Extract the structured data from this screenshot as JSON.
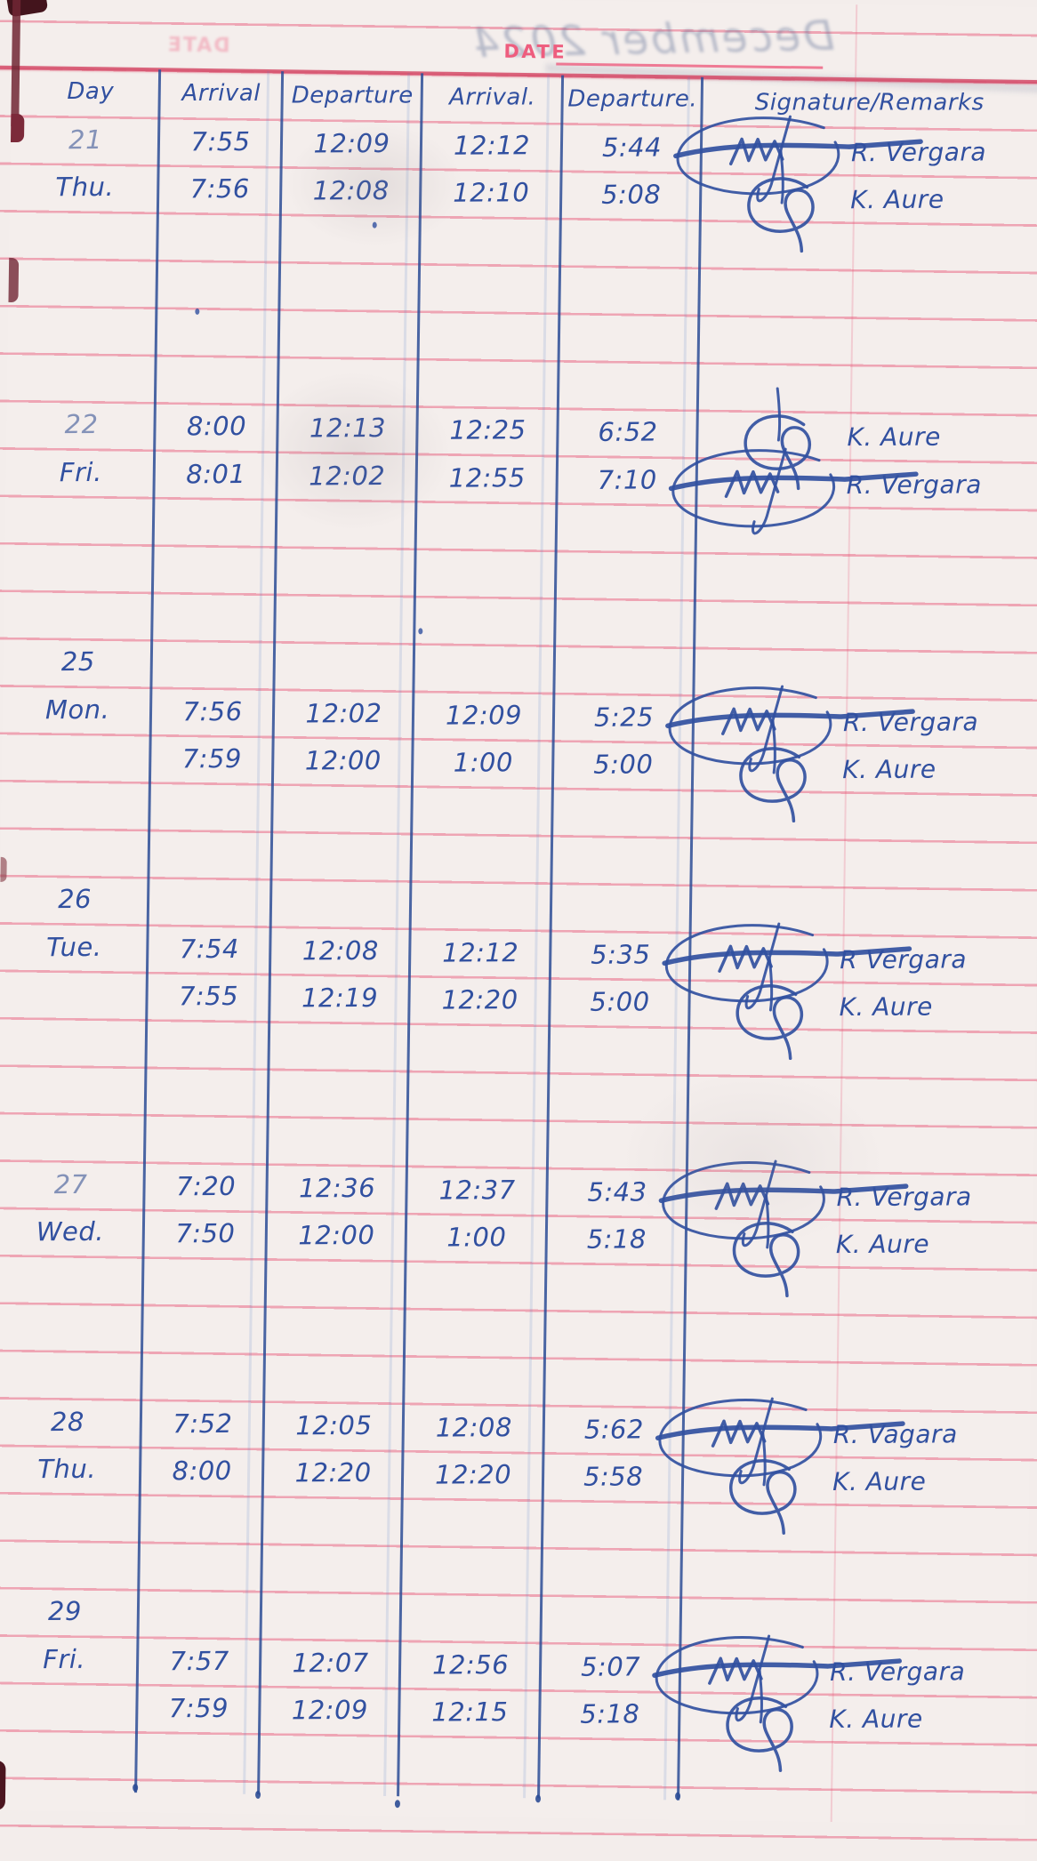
{
  "document": {
    "ghost_title": "December 2024",
    "date_label": "DATE",
    "ghost_date_stamp": "DATE"
  },
  "colors": {
    "ink_blue": "#3150a0",
    "rule_pink": "#e7557a",
    "header_rule_red": "#d44a67",
    "date_label_pink": "#ee5d7e",
    "paper": "#f4eeec"
  },
  "table": {
    "headers": [
      "Day",
      "Arrival",
      "Departure",
      "Arrival.",
      "Departure.",
      "Signature/Remarks"
    ],
    "lines": [
      {
        "line": 0,
        "day": "21",
        "day_faded": true,
        "t": [
          "7:55",
          "12:09",
          "12:12",
          "5:44"
        ],
        "sig": "vergara-scribble",
        "name": "R. Vergara"
      },
      {
        "line": 1,
        "day": "Thu.",
        "t": [
          "7:56",
          "12:08",
          "12:10",
          "5:08"
        ],
        "sig": "aure-loop",
        "name": "K. Aure"
      },
      {
        "line": 6,
        "day": "22",
        "day_faded": true,
        "t": [
          "8:00",
          "12:13",
          "12:25",
          "6:52"
        ],
        "sig": "aure-loop",
        "name": "K. Aure"
      },
      {
        "line": 7,
        "day": "Fri.",
        "t": [
          "8:01",
          "12:02",
          "12:55",
          "7:10"
        ],
        "sig": "vergara-scribble",
        "name": "R. Vergara"
      },
      {
        "line": 11,
        "day": "25"
      },
      {
        "line": 12,
        "day": "Mon.",
        "t": [
          "7:56",
          "12:02",
          "12:09",
          "5:25"
        ],
        "sig": "vergara-scribble",
        "name": "R. Vergara"
      },
      {
        "line": 13,
        "t": [
          "7:59",
          "12:00",
          "1:00",
          "5:00"
        ],
        "sig": "aure-loop",
        "name": "K. Aure"
      },
      {
        "line": 16,
        "day": "26"
      },
      {
        "line": 17,
        "day": "Tue.",
        "t": [
          "7:54",
          "12:08",
          "12:12",
          "5:35"
        ],
        "sig": "vergara-scribble",
        "name": "R Vergara"
      },
      {
        "line": 18,
        "t": [
          "7:55",
          "12:19",
          "12:20",
          "5:00"
        ],
        "sig": "aure-loop",
        "name": "K. Aure"
      },
      {
        "line": 22,
        "day": "27",
        "day_faded": true,
        "t": [
          "7:20",
          "12:36",
          "12:37",
          "5:43"
        ],
        "sig": "vergara-scribble",
        "name": "R. Vergara"
      },
      {
        "line": 23,
        "day": "Wed.",
        "t": [
          "7:50",
          "12:00",
          "1:00",
          "5:18"
        ],
        "sig": "aure-loop",
        "name": "K. Aure"
      },
      {
        "line": 27,
        "day": "28",
        "t": [
          "7:52",
          "12:05",
          "12:08",
          "5:62"
        ],
        "sig": "vergara-scribble",
        "name": "R. Vagara"
      },
      {
        "line": 28,
        "day": "Thu.",
        "t": [
          "8:00",
          "12:20",
          "12:20",
          "5:58"
        ],
        "sig": "aure-loop",
        "name": "K. Aure"
      },
      {
        "line": 31,
        "day": "29"
      },
      {
        "line": 32,
        "day": "Fri.",
        "t": [
          "7:57",
          "12:07",
          "12:56",
          "5:07"
        ],
        "sig": "vergara-scribble",
        "name": "R. Vergara"
      },
      {
        "line": 33,
        "t": [
          "7:59",
          "12:09",
          "12:15",
          "5:18"
        ],
        "sig": "aure-loop",
        "name": "K. Aure"
      }
    ]
  }
}
